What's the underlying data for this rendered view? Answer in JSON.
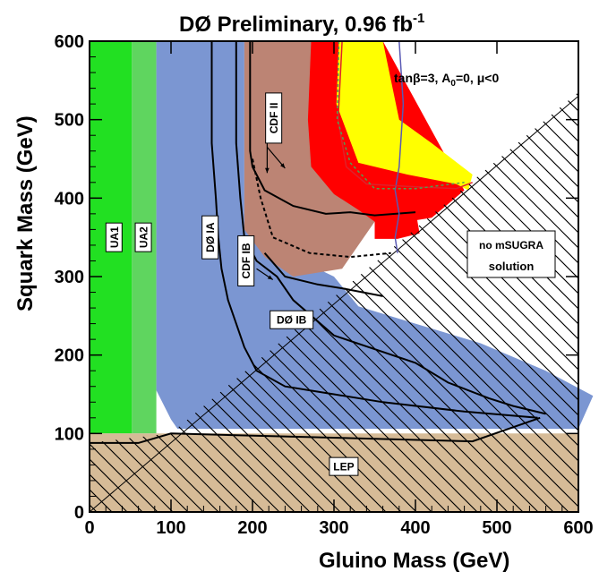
{
  "chart_data": {
    "type": "area",
    "title_main": "DØ Preliminary, 0.96 fb",
    "title_sup": "-1",
    "xlabel": "Gluino Mass (GeV)",
    "ylabel": "Squark Mass (GeV)",
    "xlim": [
      0,
      600
    ],
    "ylim": [
      0,
      600
    ],
    "xticks": [
      0,
      100,
      200,
      300,
      400,
      500,
      600
    ],
    "yticks": [
      0,
      100,
      200,
      300,
      400,
      500,
      600
    ],
    "x_tick_labels": [
      "0",
      "100",
      "200",
      "300",
      "400",
      "500",
      "600"
    ],
    "y_tick_labels": [
      "0",
      "100",
      "200",
      "300",
      "400",
      "500",
      "600"
    ],
    "params_label": "tanβ=3, A",
    "params_sub": "0",
    "params_rest": "=0, μ<0",
    "colors": {
      "ua1": "#22e022",
      "ua2": "#5fd55f",
      "d0_ia": "#7b96d2",
      "cdf_ii": "#bc8474",
      "red": "#ff0000",
      "yellow": "#ffff00",
      "lep": "#d2b48c",
      "blue_line": "#5a5ab4",
      "green_dash": "#50a050"
    },
    "regions": [
      {
        "id": "ua1",
        "color_key": "ua1",
        "points": [
          [
            0,
            0
          ],
          [
            0,
            600
          ],
          [
            52,
            600
          ],
          [
            52,
            100
          ],
          [
            0,
            100
          ]
        ]
      },
      {
        "id": "ua2",
        "color_key": "ua2",
        "points": [
          [
            52,
            100
          ],
          [
            52,
            600
          ],
          [
            82,
            600
          ],
          [
            82,
            100
          ]
        ]
      },
      {
        "id": "d0_ia",
        "color_key": "d0_ia",
        "points": [
          [
            82,
            600
          ],
          [
            82,
            155
          ],
          [
            100,
            118
          ],
          [
            108,
            106
          ],
          [
            600,
            106
          ],
          [
            618,
            148
          ],
          [
            560,
            180
          ],
          [
            480,
            215
          ],
          [
            400,
            240
          ],
          [
            330,
            262
          ],
          [
            300,
            300
          ],
          [
            240,
            330
          ],
          [
            200,
            350
          ],
          [
            190,
            380
          ],
          [
            190,
            600
          ]
        ]
      },
      {
        "id": "cdf_ii",
        "color_key": "cdf_ii",
        "points": [
          [
            190,
            600
          ],
          [
            190,
            360
          ],
          [
            215,
            325
          ],
          [
            250,
            300
          ],
          [
            310,
            310
          ],
          [
            330,
            340
          ],
          [
            350,
            370
          ],
          [
            360,
            600
          ]
        ]
      },
      {
        "id": "red",
        "color_key": "red",
        "points": [
          [
            272,
            600
          ],
          [
            268,
            500
          ],
          [
            272,
            440
          ],
          [
            300,
            405
          ],
          [
            330,
            385
          ],
          [
            350,
            370
          ],
          [
            360,
            365
          ],
          [
            420,
            375
          ],
          [
            460,
            410
          ],
          [
            360,
            600
          ]
        ]
      },
      {
        "id": "yellow",
        "color_key": "yellow",
        "points": [
          [
            306,
            600
          ],
          [
            303,
            520
          ],
          [
            330,
            445
          ],
          [
            390,
            430
          ],
          [
            450,
            418
          ],
          [
            465,
            410
          ],
          [
            470,
            430
          ],
          [
            420,
            470
          ],
          [
            380,
            500
          ],
          [
            360,
            600
          ]
        ]
      },
      {
        "id": "red_box",
        "color_key": "red",
        "points": [
          [
            350,
            385
          ],
          [
            400,
            385
          ],
          [
            405,
            355
          ],
          [
            378,
            348
          ],
          [
            350,
            348
          ]
        ]
      },
      {
        "id": "lep",
        "color_key": "lep",
        "points": [
          [
            0,
            0
          ],
          [
            0,
            100
          ],
          [
            600,
            100
          ],
          [
            600,
            0
          ]
        ]
      }
    ],
    "no_solution_region": [
      [
        0,
        0
      ],
      [
        0,
        88
      ],
      [
        100,
        100
      ],
      [
        600,
        535
      ],
      [
        600,
        0
      ]
    ],
    "no_solution_label": [
      "no mSUGRA",
      "solution"
    ],
    "diagonal_line": [
      [
        0,
        0
      ],
      [
        600,
        530
      ]
    ],
    "curves": [
      {
        "id": "d0_ia_curve",
        "style": "solid",
        "points": [
          [
            150,
            600
          ],
          [
            150,
            470
          ],
          [
            155,
            400
          ],
          [
            158,
            350
          ],
          [
            162,
            310
          ],
          [
            170,
            270
          ],
          [
            180,
            240
          ],
          [
            190,
            210
          ],
          [
            205,
            180
          ],
          [
            240,
            160
          ],
          [
            300,
            150
          ],
          [
            360,
            140
          ],
          [
            460,
            128
          ],
          [
            550,
            120
          ]
        ]
      },
      {
        "id": "cdf_ib_curve",
        "style": "solid",
        "points": [
          [
            180,
            600
          ],
          [
            180,
            470
          ],
          [
            185,
            400
          ],
          [
            190,
            350
          ],
          [
            205,
            320
          ],
          [
            230,
            300
          ],
          [
            250,
            270
          ],
          [
            300,
            225
          ],
          [
            400,
            190
          ],
          [
            440,
            165
          ],
          [
            490,
            145
          ],
          [
            520,
            135
          ],
          [
            560,
            125
          ]
        ]
      },
      {
        "id": "lep_pointer",
        "style": "solid",
        "points": [
          [
            0,
            88
          ],
          [
            60,
            88
          ],
          [
            100,
            100
          ],
          [
            470,
            90
          ],
          [
            553,
            120
          ]
        ]
      },
      {
        "id": "cdf_ii_curve",
        "style": "solid",
        "points": [
          [
            197,
            600
          ],
          [
            197,
            460
          ],
          [
            200,
            440
          ],
          [
            215,
            410
          ],
          [
            250,
            390
          ],
          [
            290,
            380
          ],
          [
            320,
            382
          ],
          [
            350,
            378
          ],
          [
            400,
            382
          ]
        ]
      },
      {
        "id": "cdf_ii_dashed",
        "style": "dashed",
        "points": [
          [
            200,
            450
          ],
          [
            210,
            400
          ],
          [
            225,
            350
          ],
          [
            270,
            330
          ],
          [
            320,
            325
          ],
          [
            370,
            330
          ]
        ]
      },
      {
        "id": "d0_ib_curve",
        "style": "solid",
        "points": [
          [
            215,
            330
          ],
          [
            240,
            300
          ],
          [
            280,
            290
          ],
          [
            310,
            285
          ],
          [
            360,
            275
          ]
        ]
      },
      {
        "id": "blue_contour",
        "style": "blue",
        "points": [
          [
            380,
            600
          ],
          [
            385,
            520
          ],
          [
            380,
            440
          ],
          [
            375,
            410
          ],
          [
            380,
            380
          ],
          [
            375,
            350
          ],
          [
            378,
            330
          ]
        ]
      },
      {
        "id": "red_contour",
        "style": "red",
        "points": [
          [
            310,
            600
          ],
          [
            305,
            500
          ],
          [
            315,
            440
          ],
          [
            340,
            418
          ],
          [
            390,
            415
          ],
          [
            450,
            412
          ],
          [
            470,
            420
          ]
        ]
      },
      {
        "id": "green_dashed",
        "style": "greendash",
        "points": [
          [
            306,
            600
          ],
          [
            304,
            500
          ],
          [
            320,
            445
          ],
          [
            350,
            412
          ],
          [
            400,
            412
          ],
          [
            460,
            420
          ]
        ]
      }
    ],
    "boxed_labels": [
      {
        "id": "ua1-label",
        "text": "UA1",
        "x": 30,
        "y": 350,
        "vertical": true
      },
      {
        "id": "ua2-label",
        "text": "UA2",
        "x": 66,
        "y": 350,
        "vertical": true
      },
      {
        "id": "d0ia-label",
        "text": "DØ IA",
        "x": 148,
        "y": 350,
        "vertical": true
      },
      {
        "id": "cdfib-label",
        "text": "CDF IB",
        "x": 192,
        "y": 320,
        "vertical": true
      },
      {
        "id": "cdfii-label",
        "text": "CDF II",
        "x": 226,
        "y": 502,
        "vertical": true
      },
      {
        "id": "d0ib-label",
        "text": "DØ IB",
        "x": 248,
        "y": 245,
        "vertical": false
      },
      {
        "id": "lep-label",
        "text": "LEP",
        "x": 312,
        "y": 58,
        "vertical": false
      }
    ],
    "arrows": [
      {
        "from": [
          205,
          310
        ],
        "to": [
          225,
          296
        ]
      },
      {
        "from": [
          218,
          472
        ],
        "to": [
          218,
          432
        ]
      },
      {
        "from": [
          218,
          465
        ],
        "to": [
          240,
          438
        ]
      }
    ]
  }
}
